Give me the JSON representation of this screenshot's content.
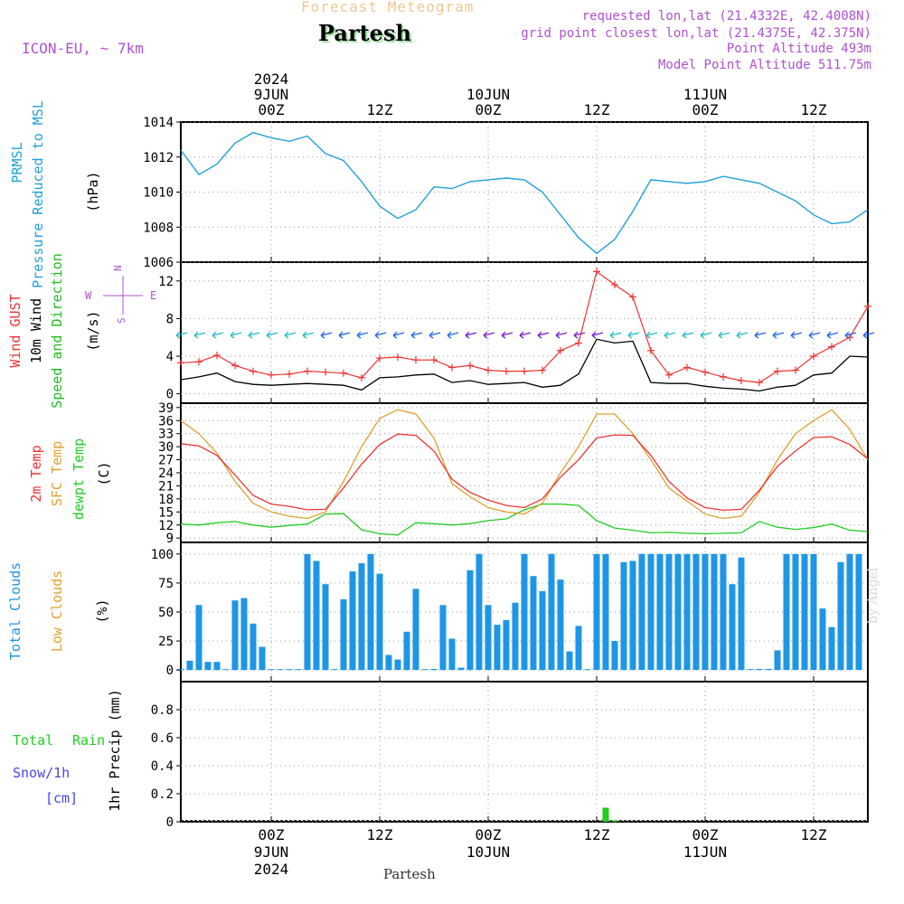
{
  "header": {
    "product": "Forecast Meteogram",
    "station": "Partesh",
    "model": "ICON-EU, ~ 7km",
    "requested": "requested lon,lat (21.4332E, 42.4008N)",
    "grid": "grid point closest lon,lat (21.4375E, 42.375N)",
    "point_alt": "Point Altitude 493m",
    "model_alt": "Model Point Altitude 511.75m"
  },
  "footer": {
    "station": "Partesh",
    "credit": "by Angel"
  },
  "colors": {
    "prmsl": "#1ea0dc",
    "gust": "#ee3333",
    "wind": "#000000",
    "dir": "#22bb22",
    "t2m": "#ee3333",
    "sfc": "#e0a030",
    "dew": "#22cc22",
    "total_cloud": "#1e96e6",
    "low_cloud": "#e0a030",
    "rain": "#22cc22",
    "snow": "#4444ee",
    "label_purple": "#b050d0",
    "title_orange": "#f0c890"
  },
  "time_axis": {
    "start": "2024-06-08T14:00Z",
    "end": "2024-06-11T18:00Z",
    "ticks": [
      {
        "t": "2024-06-09T00:00Z",
        "top": [
          "2024",
          "9JUN",
          "00Z"
        ],
        "bottom": [
          "00Z",
          "9JUN",
          "2024"
        ]
      },
      {
        "t": "2024-06-09T12:00Z",
        "top": [
          "12Z"
        ],
        "bottom": [
          "12Z"
        ]
      },
      {
        "t": "2024-06-10T00:00Z",
        "top": [
          "10JUN",
          "00Z"
        ],
        "bottom": [
          "00Z",
          "10JUN"
        ]
      },
      {
        "t": "2024-06-10T12:00Z",
        "top": [
          "12Z"
        ],
        "bottom": [
          "12Z"
        ]
      },
      {
        "t": "2024-06-11T00:00Z",
        "top": [
          "11JUN",
          "00Z"
        ],
        "bottom": [
          "00Z",
          "11JUN"
        ]
      },
      {
        "t": "2024-06-11T12:00Z",
        "top": [
          "12Z"
        ],
        "bottom": [
          "12Z"
        ]
      }
    ]
  },
  "panels": {
    "pressure": {
      "labels": [
        "PRMSL",
        "Pressure Reduced to MSL"
      ],
      "unit": "(hPa)",
      "ylim": [
        1006,
        1014
      ],
      "yticks": [
        1006,
        1008,
        1010,
        1012,
        1014
      ]
    },
    "wind": {
      "labels": [
        "Wind GUST",
        "10m Wind",
        "Speed and Direction"
      ],
      "unit": "(m/s)",
      "ylim": [
        -1,
        14
      ],
      "yticks": [
        0,
        4,
        8,
        12
      ],
      "compass": {
        "n": "N",
        "s": "S",
        "w": "W",
        "e": "E"
      }
    },
    "temp": {
      "labels": [
        "2m Temp",
        "SFC Temp",
        "dewpt Temp"
      ],
      "unit": "(C)",
      "ylim": [
        8,
        40
      ],
      "yticks": [
        9,
        12,
        15,
        18,
        21,
        24,
        27,
        30,
        33,
        36,
        39
      ]
    },
    "clouds": {
      "labels": [
        "Total Clouds",
        "Low Clouds"
      ],
      "unit": "(%)",
      "ylim": [
        -10,
        110
      ],
      "yticks": [
        0,
        25,
        50,
        75,
        100
      ]
    },
    "precip": {
      "labels": [
        "Total",
        "Rain",
        "Snow/1h",
        "[cm]"
      ],
      "ylabel": "1hr Precip (mm)",
      "ylim": [
        0,
        1
      ],
      "yticks": [
        0,
        0.2,
        0.4,
        0.6,
        0.8
      ]
    }
  },
  "chart_data": [
    {
      "type": "line",
      "title": "PRMSL Pressure Reduced to MSL",
      "ylabel": "(hPa)",
      "ylim": [
        1006,
        1014
      ],
      "x": [
        "2024-06-08T14:00Z",
        "2024-06-08T16:00Z",
        "2024-06-08T18:00Z",
        "2024-06-08T20:00Z",
        "2024-06-08T22:00Z",
        "2024-06-09T00:00Z",
        "2024-06-09T02:00Z",
        "2024-06-09T04:00Z",
        "2024-06-09T06:00Z",
        "2024-06-09T08:00Z",
        "2024-06-09T10:00Z",
        "2024-06-09T12:00Z",
        "2024-06-09T14:00Z",
        "2024-06-09T16:00Z",
        "2024-06-09T18:00Z",
        "2024-06-09T20:00Z",
        "2024-06-09T22:00Z",
        "2024-06-10T00:00Z",
        "2024-06-10T02:00Z",
        "2024-06-10T04:00Z",
        "2024-06-10T06:00Z",
        "2024-06-10T08:00Z",
        "2024-06-10T10:00Z",
        "2024-06-10T12:00Z",
        "2024-06-10T14:00Z",
        "2024-06-10T16:00Z",
        "2024-06-10T18:00Z",
        "2024-06-10T20:00Z",
        "2024-06-10T22:00Z",
        "2024-06-11T00:00Z",
        "2024-06-11T02:00Z",
        "2024-06-11T04:00Z",
        "2024-06-11T06:00Z",
        "2024-06-11T08:00Z",
        "2024-06-11T10:00Z",
        "2024-06-11T12:00Z",
        "2024-06-11T14:00Z",
        "2024-06-11T16:00Z",
        "2024-06-11T18:00Z"
      ],
      "series": [
        {
          "name": "PRMSL",
          "values": [
            1012.4,
            1011.0,
            1011.6,
            1012.8,
            1013.4,
            1013.1,
            1012.9,
            1013.2,
            1012.2,
            1011.8,
            1010.6,
            1009.2,
            1008.5,
            1009.0,
            1010.3,
            1010.2,
            1010.6,
            1010.7,
            1010.8,
            1010.7,
            1010.0,
            1008.7,
            1007.4,
            1006.5,
            1007.3,
            1008.9,
            1010.7,
            1010.6,
            1010.5,
            1010.6,
            1010.9,
            1010.7,
            1010.5,
            1010.0,
            1009.5,
            1008.7,
            1008.2,
            1008.3,
            1009.0
          ]
        }
      ]
    },
    {
      "type": "line",
      "title": "Wind GUST / 10m Wind Speed and Direction",
      "ylabel": "(m/s)",
      "ylim": [
        -1,
        14
      ],
      "x": [
        "2024-06-08T14:00Z",
        "2024-06-08T16:00Z",
        "2024-06-08T18:00Z",
        "2024-06-08T20:00Z",
        "2024-06-08T22:00Z",
        "2024-06-09T00:00Z",
        "2024-06-09T02:00Z",
        "2024-06-09T04:00Z",
        "2024-06-09T06:00Z",
        "2024-06-09T08:00Z",
        "2024-06-09T10:00Z",
        "2024-06-09T12:00Z",
        "2024-06-09T14:00Z",
        "2024-06-09T16:00Z",
        "2024-06-09T18:00Z",
        "2024-06-09T20:00Z",
        "2024-06-09T22:00Z",
        "2024-06-10T00:00Z",
        "2024-06-10T02:00Z",
        "2024-06-10T04:00Z",
        "2024-06-10T06:00Z",
        "2024-06-10T08:00Z",
        "2024-06-10T10:00Z",
        "2024-06-10T12:00Z",
        "2024-06-10T14:00Z",
        "2024-06-10T16:00Z",
        "2024-06-10T18:00Z",
        "2024-06-10T20:00Z",
        "2024-06-10T22:00Z",
        "2024-06-11T00:00Z",
        "2024-06-11T02:00Z",
        "2024-06-11T04:00Z",
        "2024-06-11T06:00Z",
        "2024-06-11T08:00Z",
        "2024-06-11T10:00Z",
        "2024-06-11T12:00Z",
        "2024-06-11T14:00Z",
        "2024-06-11T16:00Z",
        "2024-06-11T18:00Z"
      ],
      "series": [
        {
          "name": "Wind GUST",
          "values": [
            3.3,
            3.4,
            4.1,
            3.0,
            2.4,
            2.0,
            2.1,
            2.4,
            2.3,
            2.2,
            1.7,
            3.8,
            3.9,
            3.6,
            3.6,
            2.8,
            3.0,
            2.5,
            2.4,
            2.4,
            2.5,
            4.6,
            5.4,
            13.0,
            11.6,
            10.3,
            4.6,
            2.0,
            2.8,
            2.3,
            1.8,
            1.4,
            1.2,
            2.4,
            2.5,
            4.0,
            5.0,
            6.0,
            9.3
          ]
        },
        {
          "name": "10m Wind",
          "values": [
            1.5,
            1.8,
            2.2,
            1.3,
            1.0,
            0.9,
            1.0,
            1.1,
            1.0,
            0.9,
            0.4,
            1.7,
            1.8,
            2.0,
            2.1,
            1.2,
            1.4,
            1.0,
            1.1,
            1.2,
            0.7,
            0.9,
            2.1,
            5.8,
            5.4,
            5.6,
            1.2,
            1.1,
            1.1,
            0.8,
            0.6,
            0.5,
            0.3,
            0.7,
            0.9,
            2.0,
            2.2,
            4.0,
            3.9
          ]
        }
      ]
    },
    {
      "type": "line",
      "title": "2m Temp / SFC Temp / dewpt Temp",
      "ylabel": "(C)",
      "ylim": [
        8,
        40
      ],
      "x": [
        "2024-06-08T14:00Z",
        "2024-06-08T16:00Z",
        "2024-06-08T18:00Z",
        "2024-06-08T20:00Z",
        "2024-06-08T22:00Z",
        "2024-06-09T00:00Z",
        "2024-06-09T02:00Z",
        "2024-06-09T04:00Z",
        "2024-06-09T06:00Z",
        "2024-06-09T08:00Z",
        "2024-06-09T10:00Z",
        "2024-06-09T12:00Z",
        "2024-06-09T14:00Z",
        "2024-06-09T16:00Z",
        "2024-06-09T18:00Z",
        "2024-06-09T20:00Z",
        "2024-06-09T22:00Z",
        "2024-06-10T00:00Z",
        "2024-06-10T02:00Z",
        "2024-06-10T04:00Z",
        "2024-06-10T06:00Z",
        "2024-06-10T08:00Z",
        "2024-06-10T10:00Z",
        "2024-06-10T12:00Z",
        "2024-06-10T14:00Z",
        "2024-06-10T16:00Z",
        "2024-06-10T18:00Z",
        "2024-06-10T20:00Z",
        "2024-06-10T22:00Z",
        "2024-06-11T00:00Z",
        "2024-06-11T02:00Z",
        "2024-06-11T04:00Z",
        "2024-06-11T06:00Z",
        "2024-06-11T08:00Z",
        "2024-06-11T10:00Z",
        "2024-06-11T12:00Z",
        "2024-06-11T14:00Z",
        "2024-06-11T16:00Z",
        "2024-06-11T18:00Z"
      ],
      "series": [
        {
          "name": "2m Temp",
          "values": [
            30.7,
            30.2,
            28.0,
            23.5,
            18.8,
            16.8,
            16.3,
            15.5,
            15.6,
            20.5,
            26.0,
            30.5,
            32.9,
            32.6,
            29.0,
            22.5,
            19.5,
            17.7,
            16.5,
            16.0,
            18.0,
            23.0,
            27.0,
            32.0,
            32.7,
            32.6,
            28.0,
            22.0,
            18.2,
            16.0,
            15.4,
            15.6,
            20.0,
            25.5,
            29.0,
            32.1,
            32.3,
            30.5,
            27.2
          ]
        },
        {
          "name": "SFC Temp",
          "values": [
            36.0,
            33.0,
            28.5,
            22.0,
            17.0,
            15.0,
            14.0,
            13.5,
            15.0,
            22.0,
            30.0,
            36.5,
            38.5,
            37.5,
            32.0,
            21.5,
            18.5,
            16.0,
            15.0,
            14.5,
            17.0,
            24.0,
            30.0,
            37.5,
            37.5,
            33.0,
            27.0,
            20.5,
            17.5,
            14.5,
            13.5,
            14.0,
            19.5,
            27.0,
            33.0,
            36.0,
            38.5,
            34.0,
            27.0
          ]
        },
        {
          "name": "dewpt Temp",
          "values": [
            12.2,
            12.0,
            12.5,
            12.8,
            12.0,
            11.5,
            11.9,
            12.2,
            14.5,
            14.6,
            10.9,
            10.0,
            9.7,
            12.5,
            12.3,
            12.0,
            12.3,
            13.0,
            13.4,
            15.5,
            16.8,
            16.8,
            16.5,
            13.0,
            11.3,
            10.8,
            10.2,
            10.3,
            10.1,
            10.0,
            10.1,
            10.2,
            12.8,
            11.5,
            11.0,
            11.4,
            12.2,
            10.8,
            10.5
          ]
        }
      ]
    },
    {
      "type": "bar",
      "title": "Total Clouds / Low Clouds",
      "ylabel": "(%)",
      "ylim": [
        -10,
        110
      ],
      "x": [
        "2024-06-08T14:00Z",
        "2024-06-08T15:00Z",
        "2024-06-08T16:00Z",
        "2024-06-08T17:00Z",
        "2024-06-08T18:00Z",
        "2024-06-08T19:00Z",
        "2024-06-08T20:00Z",
        "2024-06-08T21:00Z",
        "2024-06-08T22:00Z",
        "2024-06-08T23:00Z",
        "2024-06-09T00:00Z",
        "2024-06-09T01:00Z",
        "2024-06-09T02:00Z",
        "2024-06-09T03:00Z",
        "2024-06-09T04:00Z",
        "2024-06-09T05:00Z",
        "2024-06-09T06:00Z",
        "2024-06-09T07:00Z",
        "2024-06-09T08:00Z",
        "2024-06-09T09:00Z",
        "2024-06-09T10:00Z",
        "2024-06-09T11:00Z",
        "2024-06-09T12:00Z",
        "2024-06-09T13:00Z",
        "2024-06-09T14:00Z",
        "2024-06-09T15:00Z",
        "2024-06-09T16:00Z",
        "2024-06-09T17:00Z",
        "2024-06-09T18:00Z",
        "2024-06-09T19:00Z",
        "2024-06-09T20:00Z",
        "2024-06-09T21:00Z",
        "2024-06-09T22:00Z",
        "2024-06-09T23:00Z",
        "2024-06-10T00:00Z",
        "2024-06-10T01:00Z",
        "2024-06-10T02:00Z",
        "2024-06-10T03:00Z",
        "2024-06-10T04:00Z",
        "2024-06-10T05:00Z",
        "2024-06-10T06:00Z",
        "2024-06-10T07:00Z",
        "2024-06-10T08:00Z",
        "2024-06-10T09:00Z",
        "2024-06-10T10:00Z",
        "2024-06-10T11:00Z",
        "2024-06-10T12:00Z",
        "2024-06-10T13:00Z",
        "2024-06-10T14:00Z",
        "2024-06-10T15:00Z",
        "2024-06-10T16:00Z",
        "2024-06-10T17:00Z",
        "2024-06-10T18:00Z",
        "2024-06-10T19:00Z",
        "2024-06-10T20:00Z",
        "2024-06-10T21:00Z",
        "2024-06-10T22:00Z",
        "2024-06-10T23:00Z",
        "2024-06-11T00:00Z",
        "2024-06-11T01:00Z",
        "2024-06-11T02:00Z",
        "2024-06-11T03:00Z",
        "2024-06-11T04:00Z",
        "2024-06-11T05:00Z",
        "2024-06-11T06:00Z",
        "2024-06-11T07:00Z",
        "2024-06-11T08:00Z",
        "2024-06-11T09:00Z",
        "2024-06-11T10:00Z",
        "2024-06-11T11:00Z",
        "2024-06-11T12:00Z",
        "2024-06-11T13:00Z",
        "2024-06-11T14:00Z",
        "2024-06-11T15:00Z",
        "2024-06-11T16:00Z",
        "2024-06-11T17:00Z"
      ],
      "series": [
        {
          "name": "Total Clouds",
          "values": [
            1,
            8,
            56,
            7,
            7,
            0,
            60,
            62,
            40,
            20,
            0,
            0,
            0,
            0,
            100,
            94,
            74,
            0,
            61,
            85,
            92,
            100,
            83,
            13,
            9,
            33,
            70,
            0,
            1,
            56,
            27,
            2,
            86,
            100,
            56,
            39,
            43,
            58,
            100,
            81,
            68,
            100,
            78,
            16,
            38,
            0,
            100,
            100,
            25,
            93,
            94,
            100,
            100,
            100,
            100,
            100,
            100,
            100,
            100,
            100,
            100,
            74,
            97,
            0,
            1,
            1,
            17,
            100,
            100,
            100,
            100,
            53,
            37,
            93,
            100,
            100
          ]
        },
        {
          "name": "Low Clouds",
          "values": [
            0,
            0,
            0,
            0,
            0,
            0,
            0,
            0,
            0,
            0,
            0,
            0,
            0,
            0,
            0,
            0,
            0,
            0,
            0,
            0,
            0,
            0,
            0,
            0,
            0,
            0,
            0,
            0,
            0,
            0,
            0,
            0,
            0,
            0,
            0,
            0,
            0,
            0,
            0,
            0,
            0,
            0,
            0,
            0,
            0,
            0,
            0,
            0,
            0,
            0,
            0,
            0,
            0,
            0,
            0,
            0,
            0,
            0,
            0,
            0,
            0,
            0,
            0,
            0,
            0,
            0,
            0,
            0,
            0,
            0,
            0,
            0,
            0,
            0,
            0,
            0
          ]
        }
      ]
    },
    {
      "type": "bar",
      "title": "1hr Precip",
      "ylabel": "1hr Precip (mm)",
      "ylim": [
        0,
        1
      ],
      "x": [
        "2024-06-10T13:00Z",
        "2024-06-10T14:00Z"
      ],
      "series": [
        {
          "name": "Total Rain",
          "values": [
            0.1,
            0.01
          ]
        },
        {
          "name": "Snow/1h",
          "values": [
            0,
            0
          ]
        }
      ]
    }
  ]
}
